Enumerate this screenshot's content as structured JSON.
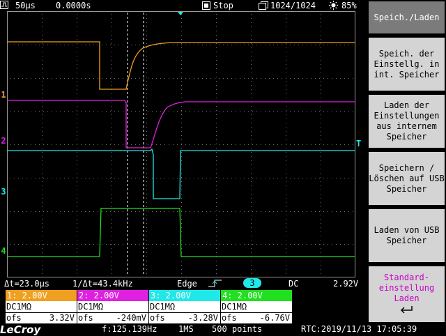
{
  "topbar": {
    "timebase": "50µs",
    "trigger_pos": "0.0000s",
    "run_state": "Stop",
    "memory": "1024/1024",
    "battery": "85%",
    "icons": [
      "timebase-icon",
      "stop-icon",
      "memory-icon",
      "sun-icon"
    ]
  },
  "channels": [
    {
      "marker": "1",
      "color": "#f0a020",
      "label": "1: 2.00V",
      "coupling": "DC1MΩ",
      "ofs_label": "ofs",
      "ofs": "3.32V"
    },
    {
      "marker": "2",
      "color": "#e020e0",
      "label": "2: 2.00V",
      "coupling": "DC1MΩ",
      "ofs_label": "ofs",
      "ofs": "-240mV"
    },
    {
      "marker": "3",
      "color": "#20e8e8",
      "label": "3: 2.00V",
      "coupling": "DC1MΩ",
      "ofs_label": "ofs",
      "ofs": "-3.28V"
    },
    {
      "marker": "4",
      "color": "#20e020",
      "label": "4: 2.00V",
      "coupling": "DC1MΩ",
      "ofs_label": "ofs",
      "ofs": "-6.76V"
    }
  ],
  "trigger_marker": "T",
  "measure": {
    "delta_t": "Δt=23.0µs",
    "inv_delta_t": "1/Δt=43.4kHz",
    "trigger_type": "Edge",
    "trigger_source": "3",
    "coupling": "DC",
    "trigger_level": "2.92V"
  },
  "bottom": {
    "brand": "LeCroy",
    "freq": "f:125.139Hz",
    "sample_rate": "1MS",
    "points": "500 points",
    "rtc": "RTC:2019/11/13 17:05:39"
  },
  "menu": {
    "title": "Speich./Laden",
    "items": [
      "Speich. der Einstellg. in int. Speicher",
      "Laden der Einstellungen aus internem Speicher",
      "Speichern / Löschen auf USB Speicher",
      "Laden von USB Speicher"
    ],
    "last": "Standard-einstellung Laden"
  }
}
